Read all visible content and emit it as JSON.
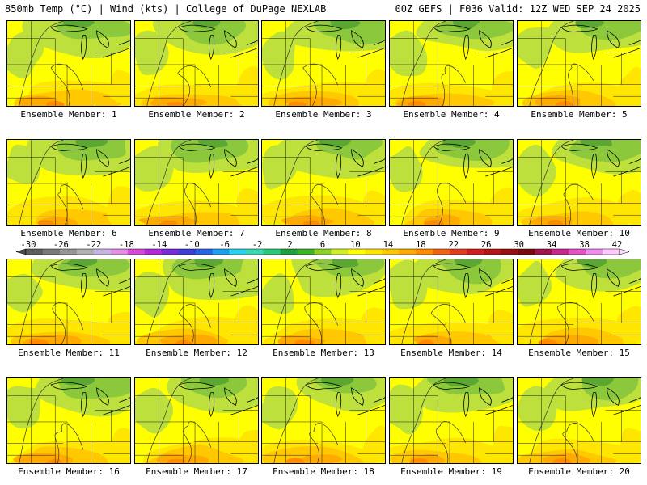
{
  "header": {
    "left": "850mb Temp (°C) | Wind (kts) | College of DuPage NEXLAB",
    "right": "00Z GEFS | F036 Valid: 12Z WED SEP 24 2025"
  },
  "members": [
    "Ensemble Member: 1",
    "Ensemble Member: 2",
    "Ensemble Member: 3",
    "Ensemble Member: 4",
    "Ensemble Member: 5",
    "Ensemble Member: 6",
    "Ensemble Member: 7",
    "Ensemble Member: 8",
    "Ensemble Member: 9",
    "Ensemble Member: 10",
    "Ensemble Member: 11",
    "Ensemble Member: 12",
    "Ensemble Member: 13",
    "Ensemble Member: 14",
    "Ensemble Member: 15",
    "Ensemble Member: 16",
    "Ensemble Member: 17",
    "Ensemble Member: 18",
    "Ensemble Member: 19",
    "Ensemble Member: 20"
  ],
  "colorbar": {
    "labels": [
      "-30",
      "-26",
      "-22",
      "-18",
      "-14",
      "-10",
      "-6",
      "-2",
      "2",
      "6",
      "10",
      "14",
      "18",
      "22",
      "26",
      "30",
      "34",
      "38",
      "42"
    ],
    "colors": [
      "#5e5e5e",
      "#7a7a7a",
      "#969696",
      "#b0b0b0",
      "#c8b4e6",
      "#e58ce6",
      "#d848d8",
      "#b428d8",
      "#7a28d8",
      "#3c3cd8",
      "#2864e6",
      "#1ea0f0",
      "#28d2f0",
      "#3cd8b4",
      "#28c87a",
      "#1ea03c",
      "#3cb428",
      "#8cd228",
      "#d2f028",
      "#ffff00",
      "#ffe600",
      "#ffc800",
      "#ffaa00",
      "#ff8c00",
      "#f06414",
      "#e63c1e",
      "#d21e1e",
      "#b41414",
      "#961010",
      "#780a0a",
      "#a0144c",
      "#c8288c",
      "#e650c8",
      "#f08cf0",
      "#ffc8ff"
    ]
  },
  "palette": {
    "green_dark": "#5aa832",
    "green": "#8cc83c",
    "green_light": "#bee03c",
    "yellow": "#ffff00",
    "gold": "#ffe600",
    "orange_light": "#ffc800",
    "orange": "#ffaa00",
    "orange_dark": "#ff8c00"
  }
}
